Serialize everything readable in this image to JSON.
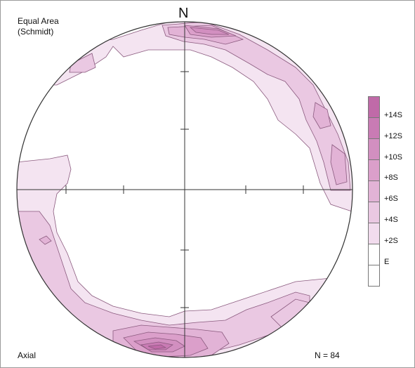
{
  "header": {
    "projection_line1": "Equal Area",
    "projection_line2": "(Schmidt)",
    "north_label": "N"
  },
  "footer": {
    "mode": "Axial",
    "count": "N = 84"
  },
  "legend": {
    "levels": [
      "+14S",
      "+12S",
      "+10S",
      "+8S",
      "+6S",
      "+4S",
      "+2S",
      "E"
    ],
    "colors": [
      "#c06aa8",
      "#c97bb4",
      "#d28fc0",
      "#db9fca",
      "#e2b3d6",
      "#eac8e2",
      "#f2dcee",
      "#ffffff"
    ]
  },
  "colors": {
    "contour_stroke": "#8a5a7e",
    "axis_stroke": "#333333"
  }
}
